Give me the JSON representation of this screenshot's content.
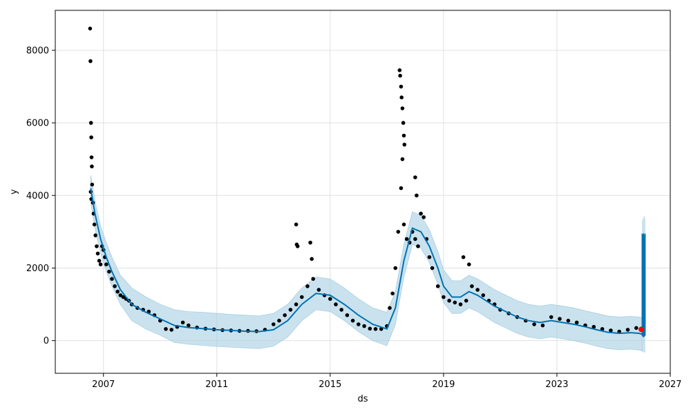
{
  "chart_data": {
    "type": "line",
    "title": "",
    "xlabel": "ds",
    "ylabel": "y",
    "xlim": [
      2005.3,
      2027.0
    ],
    "ylim": [
      -900,
      9100
    ],
    "x_ticks": [
      2007,
      2011,
      2015,
      2019,
      2023,
      2027
    ],
    "x_tick_labels": [
      "2007",
      "2011",
      "2015",
      "2019",
      "2023",
      "2027"
    ],
    "y_ticks": [
      0,
      2000,
      4000,
      6000,
      8000
    ],
    "y_tick_labels": [
      "0",
      "2000",
      "4000",
      "6000",
      "8000"
    ],
    "grid": true,
    "legend": "none",
    "colors": {
      "observed": "#000000",
      "forecast": "#0072B2",
      "interval": "#A6CEE3",
      "highlight": "#FF0000"
    },
    "series": [
      {
        "kind": "observed",
        "x": [
          2006.55,
          2006.57,
          2006.6,
          2006.63,
          2006.65,
          2006.68,
          2006.72,
          2006.76,
          2006.8,
          2006.85,
          2006.9,
          2006.95,
          2007.0,
          2007.05,
          2007.1,
          2007.2,
          2007.3,
          2007.4,
          2007.5,
          2007.6,
          2007.7,
          2007.8,
          2007.9,
          2008.0,
          2008.2,
          2008.4,
          2008.6,
          2008.8,
          2009.0,
          2009.2,
          2009.4,
          2009.6,
          2009.8,
          2010.0,
          2010.3,
          2010.6,
          2010.9,
          2011.2,
          2011.5,
          2011.8,
          2012.1,
          2012.4,
          2012.7,
          2013.0,
          2013.2,
          2013.4,
          2013.6,
          2013.8,
          2014.0,
          2014.2,
          2014.4,
          2014.6,
          2014.8,
          2015.0,
          2015.2,
          2015.4,
          2015.6,
          2015.8,
          2016.0,
          2016.2,
          2016.4,
          2016.6,
          2016.8,
          2017.0,
          2017.1,
          2017.2,
          2017.3,
          2017.4,
          2017.5,
          2017.55,
          2017.6,
          2017.7,
          2017.8,
          2017.9,
          2018.0,
          2018.1,
          2018.2,
          2018.3,
          2018.4,
          2018.5,
          2018.6,
          2018.8,
          2019.0,
          2019.2,
          2019.4,
          2019.6,
          2019.8,
          2020.0,
          2020.2,
          2020.4,
          2020.6,
          2020.8,
          2021.0,
          2021.3,
          2021.6,
          2021.9,
          2022.2,
          2022.5,
          2022.8,
          2023.1,
          2023.4,
          2023.7,
          2024.0,
          2024.3,
          2024.6,
          2024.9,
          2025.2,
          2025.5,
          2025.8,
          2026.0
        ],
        "y": [
          4100,
          3900,
          4300,
          3800,
          3500,
          3200,
          2900,
          2600,
          2400,
          2200,
          2100,
          2600,
          2500,
          2300,
          2100,
          1900,
          1700,
          1500,
          1350,
          1250,
          1200,
          1150,
          1100,
          1000,
          900,
          850,
          800,
          700,
          550,
          320,
          300,
          380,
          500,
          420,
          360,
          330,
          310,
          290,
          280,
          270,
          270,
          260,
          300,
          450,
          550,
          700,
          850,
          1000,
          1200,
          1500,
          1700,
          1400,
          1250,
          1150,
          1000,
          850,
          700,
          550,
          450,
          400,
          330,
          320,
          320,
          400,
          900,
          1300,
          2000,
          3000,
          4200,
          5000,
          3200,
          2800,
          2700,
          3000,
          2800,
          2600,
          3500,
          3400,
          2800,
          2300,
          2000,
          1500,
          1200,
          1100,
          1050,
          1000,
          1100,
          1500,
          1400,
          1250,
          1100,
          1000,
          850,
          750,
          650,
          550,
          450,
          420,
          650,
          600,
          550,
          500,
          420,
          380,
          320,
          280,
          250,
          300,
          350,
          340
        ]
      },
      {
        "kind": "observed_outliers",
        "x": [
          2006.53,
          2006.54,
          2006.56,
          2006.57,
          2006.58,
          2006.59,
          2013.8,
          2013.82,
          2013.85,
          2014.3,
          2014.35,
          2017.45,
          2017.47,
          2017.5,
          2017.52,
          2017.55,
          2017.58,
          2017.6,
          2017.62,
          2018.0,
          2018.05,
          2019.7,
          2019.9
        ],
        "y": [
          8600,
          7700,
          6000,
          5600,
          5050,
          4800,
          3200,
          2650,
          2600,
          2700,
          2250,
          7450,
          7300,
          7000,
          6700,
          6400,
          6000,
          5650,
          5400,
          4500,
          4000,
          2300,
          2100
        ]
      },
      {
        "kind": "forecast",
        "x": [
          2006.55,
          2006.7,
          2006.9,
          2007.1,
          2007.3,
          2007.6,
          2008.0,
          2008.5,
          2009.0,
          2009.5,
          2010.0,
          2010.5,
          2011.0,
          2011.5,
          2012.0,
          2012.5,
          2013.0,
          2013.5,
          2014.0,
          2014.5,
          2015.0,
          2015.5,
          2016.0,
          2016.5,
          2017.0,
          2017.3,
          2017.6,
          2017.9,
          2018.2,
          2018.5,
          2018.8,
          2019.0,
          2019.3,
          2019.6,
          2019.9,
          2020.2,
          2020.5,
          2020.8,
          2021.2,
          2021.6,
          2022.0,
          2022.4,
          2022.8,
          2023.2,
          2023.6,
          2024.0,
          2024.4,
          2024.8,
          2025.2,
          2025.6,
          2025.9,
          2026.0
        ],
        "y": [
          4200,
          3500,
          2800,
          2300,
          1900,
          1400,
          1000,
          780,
          600,
          420,
          360,
          330,
          300,
          280,
          260,
          250,
          300,
          550,
          1000,
          1300,
          1250,
          1000,
          700,
          450,
          320,
          900,
          2200,
          3100,
          3000,
          2600,
          2000,
          1500,
          1200,
          1200,
          1350,
          1250,
          1100,
          950,
          800,
          650,
          550,
          500,
          550,
          500,
          450,
          380,
          300,
          230,
          200,
          220,
          200,
          180
        ]
      },
      {
        "kind": "forecast_upper",
        "x": [
          2006.55,
          2006.7,
          2006.9,
          2007.1,
          2007.3,
          2007.6,
          2008.0,
          2008.5,
          2009.0,
          2009.5,
          2010.0,
          2010.5,
          2011.0,
          2011.5,
          2012.0,
          2012.5,
          2013.0,
          2013.5,
          2014.0,
          2014.5,
          2015.0,
          2015.5,
          2016.0,
          2016.5,
          2017.0,
          2017.3,
          2017.6,
          2017.9,
          2018.2,
          2018.5,
          2018.8,
          2019.0,
          2019.3,
          2019.6,
          2019.9,
          2020.2,
          2020.5,
          2020.8,
          2021.2,
          2021.6,
          2022.0,
          2022.4,
          2022.8,
          2023.2,
          2023.6,
          2024.0,
          2024.4,
          2024.8,
          2025.2,
          2025.6,
          2025.9,
          2026.0
        ],
        "y": [
          4550,
          3850,
          3150,
          2700,
          2300,
          1800,
          1450,
          1200,
          1000,
          850,
          800,
          780,
          750,
          720,
          700,
          680,
          750,
          1000,
          1450,
          1750,
          1700,
          1450,
          1150,
          900,
          780,
          1350,
          2650,
          3550,
          3450,
          3050,
          2450,
          1950,
          1650,
          1650,
          1800,
          1700,
          1550,
          1400,
          1250,
          1100,
          1000,
          950,
          1000,
          950,
          900,
          820,
          750,
          680,
          650,
          670,
          650,
          640
        ]
      },
      {
        "kind": "forecast_lower",
        "x": [
          2006.55,
          2006.7,
          2006.9,
          2007.1,
          2007.3,
          2007.6,
          2008.0,
          2008.5,
          2009.0,
          2009.5,
          2010.0,
          2010.5,
          2011.0,
          2011.5,
          2012.0,
          2012.5,
          2013.0,
          2013.5,
          2014.0,
          2014.5,
          2015.0,
          2015.5,
          2016.0,
          2016.5,
          2017.0,
          2017.3,
          2017.6,
          2017.9,
          2018.2,
          2018.5,
          2018.8,
          2019.0,
          2019.3,
          2019.6,
          2019.9,
          2020.2,
          2020.5,
          2020.8,
          2021.2,
          2021.6,
          2022.0,
          2022.4,
          2022.8,
          2023.2,
          2023.6,
          2024.0,
          2024.4,
          2024.8,
          2025.2,
          2025.6,
          2025.9,
          2026.0
        ],
        "y": [
          3800,
          3100,
          2400,
          1900,
          1500,
          1000,
          550,
          320,
          150,
          -50,
          -100,
          -130,
          -160,
          -180,
          -200,
          -220,
          -150,
          100,
          550,
          850,
          800,
          550,
          250,
          0,
          -140,
          450,
          1750,
          2650,
          2550,
          2150,
          1550,
          1050,
          750,
          750,
          900,
          800,
          650,
          500,
          350,
          200,
          100,
          50,
          100,
          50,
          0,
          -70,
          -150,
          -220,
          -250,
          -230,
          -260,
          -280
        ]
      },
      {
        "kind": "future_forecast_band",
        "x": [
          2026.0,
          2026.03,
          2026.06,
          2026.09,
          2026.12
        ],
        "lower": [
          -300,
          -320,
          -310,
          -330,
          -340
        ],
        "upper": [
          3300,
          3350,
          3400,
          3450,
          3350
        ],
        "mid_low": [
          150,
          120,
          100,
          130,
          150
        ],
        "mid_high": [
          2950,
          2900,
          2950,
          2900,
          2950
        ]
      },
      {
        "kind": "highlight_point",
        "x": [
          2025.97
        ],
        "y": [
          310
        ]
      }
    ]
  }
}
